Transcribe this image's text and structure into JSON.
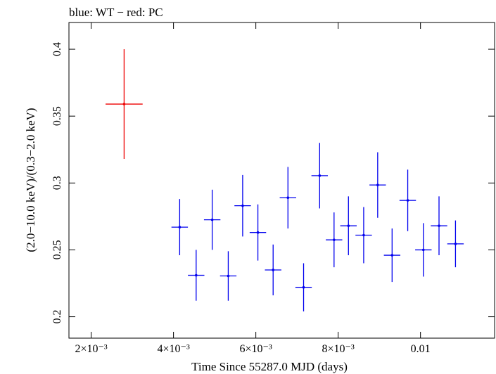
{
  "chart_data": {
    "type": "scatter",
    "title": "blue: WT − red: PC",
    "xlabel": "Time Since 55287.0 MJD (days)",
    "ylabel": "(2.0−10.0 keV)/(0.3−2.0 keV)",
    "xlim": [
      0.00146,
      0.0118
    ],
    "ylim": [
      0.184,
      0.42
    ],
    "x_ticks": [
      {
        "value": 0.002,
        "label": "2×10⁻³"
      },
      {
        "value": 0.004,
        "label": "4×10⁻³"
      },
      {
        "value": 0.006,
        "label": "6×10⁻³"
      },
      {
        "value": 0.008,
        "label": "8×10⁻³"
      },
      {
        "value": 0.01,
        "label": "0.01"
      }
    ],
    "y_ticks": [
      {
        "value": 0.2,
        "label": "0.2"
      },
      {
        "value": 0.25,
        "label": "0.25"
      },
      {
        "value": 0.3,
        "label": "0.3"
      },
      {
        "value": 0.35,
        "label": "0.35"
      },
      {
        "value": 0.4,
        "label": "0.4"
      }
    ],
    "colors": {
      "WT": "#0000ee",
      "PC": "#ee0000"
    },
    "series": [
      {
        "mode": "WT",
        "points": [
          {
            "x": 0.00415,
            "xerr": 0.0002,
            "y": 0.267,
            "yerr": 0.021
          },
          {
            "x": 0.00455,
            "xerr": 0.0002,
            "y": 0.231,
            "yerr": 0.019
          },
          {
            "x": 0.00494,
            "xerr": 0.0002,
            "y": 0.2725,
            "yerr": 0.0225
          },
          {
            "x": 0.00533,
            "xerr": 0.0002,
            "y": 0.2305,
            "yerr": 0.0185
          },
          {
            "x": 0.00568,
            "xerr": 0.0002,
            "y": 0.283,
            "yerr": 0.023
          },
          {
            "x": 0.00605,
            "xerr": 0.0002,
            "y": 0.263,
            "yerr": 0.021
          },
          {
            "x": 0.00642,
            "xerr": 0.0002,
            "y": 0.235,
            "yerr": 0.019
          },
          {
            "x": 0.00678,
            "xerr": 0.0002,
            "y": 0.289,
            "yerr": 0.023
          },
          {
            "x": 0.00716,
            "xerr": 0.0002,
            "y": 0.222,
            "yerr": 0.018
          },
          {
            "x": 0.00755,
            "xerr": 0.0002,
            "y": 0.3055,
            "yerr": 0.0245
          },
          {
            "x": 0.0079,
            "xerr": 0.0002,
            "y": 0.2575,
            "yerr": 0.0205
          },
          {
            "x": 0.00825,
            "xerr": 0.0002,
            "y": 0.268,
            "yerr": 0.022
          },
          {
            "x": 0.00862,
            "xerr": 0.0002,
            "y": 0.261,
            "yerr": 0.021
          },
          {
            "x": 0.00896,
            "xerr": 0.0002,
            "y": 0.2985,
            "yerr": 0.0245
          },
          {
            "x": 0.00931,
            "xerr": 0.0002,
            "y": 0.246,
            "yerr": 0.02
          },
          {
            "x": 0.00969,
            "xerr": 0.0002,
            "y": 0.287,
            "yerr": 0.023
          },
          {
            "x": 0.01007,
            "xerr": 0.0002,
            "y": 0.25,
            "yerr": 0.02
          },
          {
            "x": 0.01045,
            "xerr": 0.0002,
            "y": 0.268,
            "yerr": 0.022
          },
          {
            "x": 0.01085,
            "xerr": 0.0002,
            "y": 0.2545,
            "yerr": 0.0175
          }
        ]
      },
      {
        "mode": "PC",
        "points": [
          {
            "x": 0.0028,
            "xerr": 0.00045,
            "y": 0.359,
            "yerr": 0.041
          }
        ]
      }
    ]
  }
}
